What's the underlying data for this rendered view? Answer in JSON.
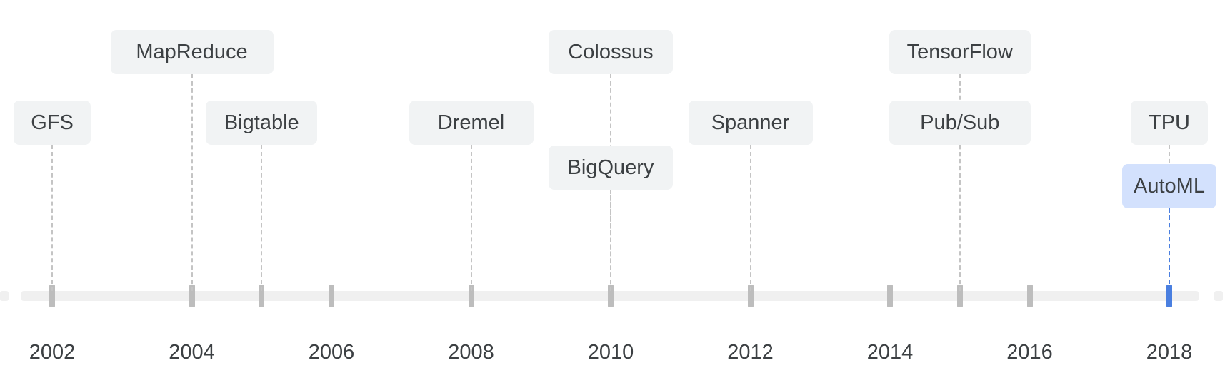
{
  "timeline": {
    "years": [
      "2002",
      "2004",
      "2006",
      "2008",
      "2010",
      "2012",
      "2014",
      "2016",
      "2018"
    ],
    "highlight_color": "#4a7fe0",
    "highlight_box_color": "#d3e1fd",
    "events": [
      {
        "label": "GFS",
        "year": 2002.0,
        "row": 2
      },
      {
        "label": "MapReduce",
        "year": 2004.0,
        "row": 1
      },
      {
        "label": "Bigtable",
        "year": 2005.0,
        "row": 2
      },
      {
        "label": "Dremel",
        "year": 2008.0,
        "row": 2
      },
      {
        "label": "Colossus",
        "year": 2010.0,
        "row": 1
      },
      {
        "label": "BigQuery",
        "year": 2010.0,
        "row": 3
      },
      {
        "label": "Spanner",
        "year": 2012.0,
        "row": 2
      },
      {
        "label": "TensorFlow",
        "year": 2015.0,
        "row": 1
      },
      {
        "label": "Pub/Sub",
        "year": 2015.0,
        "row": 2
      },
      {
        "label": "TPU",
        "year": 2018.0,
        "row": 2
      },
      {
        "label": "AutoML",
        "year": 2018.0,
        "row": 4,
        "highlight": true
      }
    ],
    "extra_ticks": [
      2005.0,
      2006.0,
      2014.0,
      2015.0,
      2016.0
    ]
  }
}
